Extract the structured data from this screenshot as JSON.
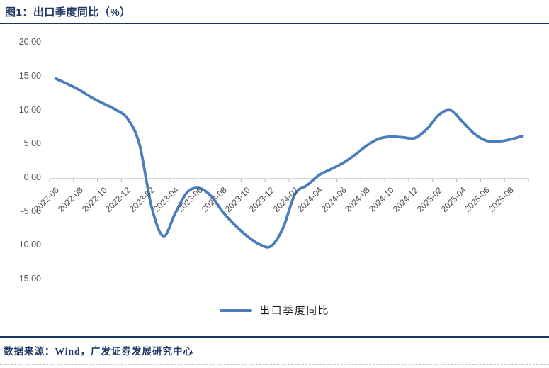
{
  "title": "图1：出口季度同比（%）",
  "legend": {
    "label": "出口季度同比",
    "color": "#4a7ebb"
  },
  "footer": {
    "source_text": "数据来源：Wind，广发证券发展研究中心"
  },
  "colors": {
    "series_line": "#4a7ebb",
    "axis_line": "#bfbfbf",
    "y_label_text": "#595959",
    "x_label_text": "#4d4d4d",
    "title_text": "#1f3864",
    "rule_line": "#17365d"
  },
  "chart_data": {
    "type": "line",
    "title": "出口季度同比（%）",
    "x": [
      "2022-06",
      "2022-07",
      "2022-08",
      "2022-09",
      "2022-10",
      "2022-11",
      "2022-12",
      "2023-01",
      "2023-02",
      "2023-03",
      "2023-04",
      "2023-05",
      "2023-06",
      "2023-07",
      "2023-08",
      "2023-09",
      "2023-10",
      "2023-11",
      "2023-12",
      "2024-01",
      "2024-02",
      "2024-03",
      "2024-04",
      "2024-05",
      "2024-06",
      "2024-07",
      "2024-08",
      "2024-09",
      "2024-10",
      "2024-11",
      "2024-12",
      "2025-01",
      "2025-02",
      "2025-03",
      "2025-04",
      "2025-05",
      "2025-06",
      "2025-07",
      "2025-08",
      "2025-09"
    ],
    "series": [
      {
        "name": "出口季度同比",
        "values": [
          14.6,
          13.8,
          12.9,
          11.8,
          10.9,
          10.0,
          8.7,
          4.9,
          -4.2,
          -8.7,
          -5.3,
          -2.2,
          -1.6,
          -2.8,
          -5.2,
          -7.1,
          -8.7,
          -9.9,
          -10.2,
          -7.5,
          -2.5,
          -1.2,
          0.3,
          1.2,
          2.1,
          3.3,
          4.7,
          5.7,
          6.0,
          5.9,
          5.8,
          7.1,
          9.2,
          9.9,
          8.2,
          6.4,
          5.4,
          5.3,
          5.6,
          6.1
        ]
      }
    ],
    "x_tick_labels": [
      "2022-06",
      "2022-08",
      "2022-10",
      "2022-12",
      "2023-02",
      "2023-04",
      "2023-06",
      "2023-08",
      "2023-10",
      "2023-12",
      "2024-02",
      "2024-04",
      "2024-06",
      "2024-08",
      "2024-10",
      "2024-12",
      "2025-02",
      "2025-04",
      "2025-06",
      "2025-08"
    ],
    "y_ticks": [
      20,
      15,
      10,
      5,
      0,
      -5,
      -10,
      -15
    ],
    "y_tick_labels": [
      "20.00",
      "15.00",
      "10.00",
      "5.00",
      "0.00",
      "-5.00",
      "-10.00",
      "-15.00"
    ],
    "ylim": [
      -15,
      20
    ],
    "grid": false,
    "smoothed": true,
    "legend_position": "bottom"
  }
}
